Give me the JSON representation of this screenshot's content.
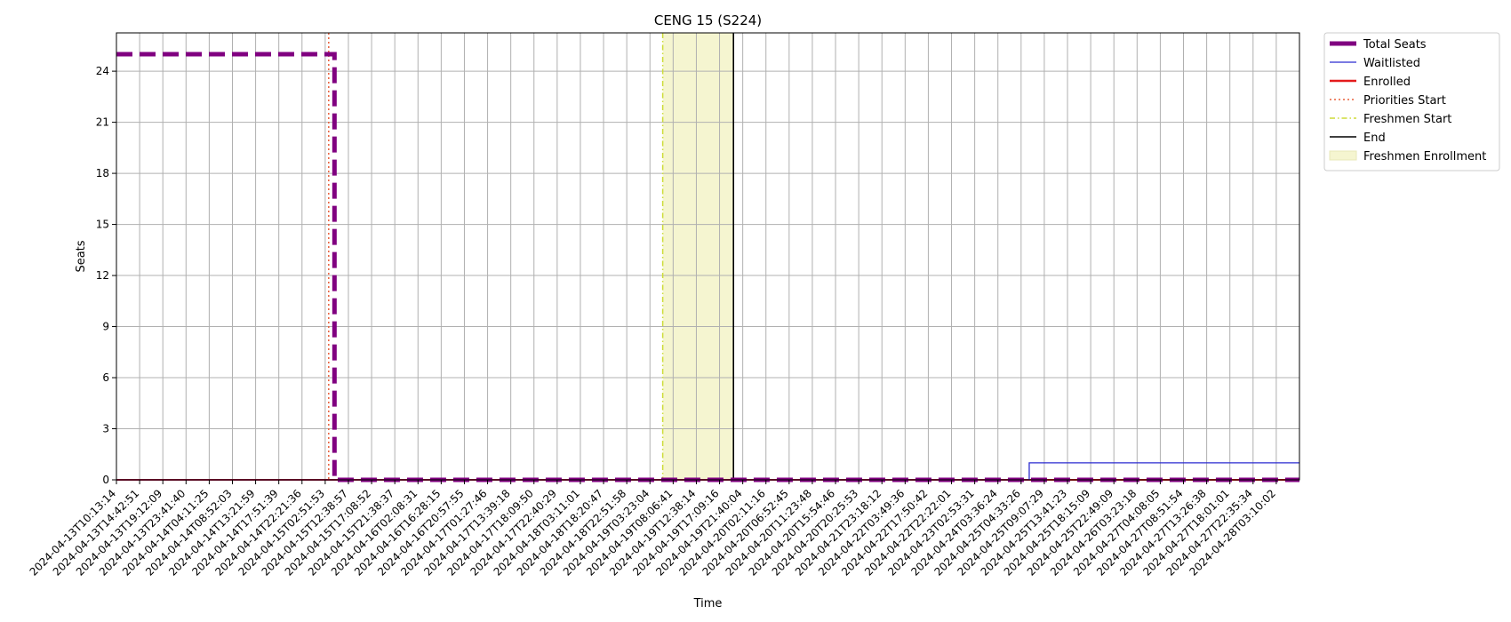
{
  "chart_data": {
    "type": "line",
    "title": "CENG 15 (S224)",
    "xlabel": "Time",
    "ylabel": "Seats",
    "ylim": [
      0,
      26.25
    ],
    "yticks": [
      0,
      3,
      6,
      9,
      12,
      15,
      18,
      21,
      24
    ],
    "grid": true,
    "legend_position": "outside-top-right",
    "x_ticks": [
      "2024-04-13T10:13:14",
      "2024-04-13T14:42:51",
      "2024-04-13T19:12:09",
      "2024-04-13T23:41:40",
      "2024-04-14T04:11:25",
      "2024-04-14T08:52:03",
      "2024-04-14T13:21:59",
      "2024-04-14T17:51:39",
      "2024-04-14T22:21:36",
      "2024-04-15T02:51:53",
      "2024-04-15T12:38:57",
      "2024-04-15T17:08:52",
      "2024-04-15T21:38:37",
      "2024-04-16T02:08:31",
      "2024-04-16T16:28:15",
      "2024-04-16T20:57:55",
      "2024-04-17T01:27:46",
      "2024-04-17T13:39:18",
      "2024-04-17T18:09:50",
      "2024-04-17T22:40:29",
      "2024-04-18T03:11:01",
      "2024-04-18T18:20:47",
      "2024-04-18T22:51:58",
      "2024-04-19T03:23:04",
      "2024-04-19T08:06:41",
      "2024-04-19T12:38:14",
      "2024-04-19T17:09:16",
      "2024-04-19T21:40:04",
      "2024-04-20T02:11:16",
      "2024-04-20T06:52:45",
      "2024-04-20T11:23:48",
      "2024-04-20T15:54:46",
      "2024-04-20T20:25:53",
      "2024-04-21T23:18:12",
      "2024-04-22T03:49:36",
      "2024-04-22T17:50:42",
      "2024-04-22T22:22:01",
      "2024-04-23T02:53:31",
      "2024-04-24T03:36:24",
      "2024-04-25T04:33:26",
      "2024-04-25T09:07:29",
      "2024-04-25T13:41:23",
      "2024-04-25T18:15:09",
      "2024-04-25T22:49:09",
      "2024-04-26T03:23:18",
      "2024-04-27T04:08:05",
      "2024-04-27T08:51:54",
      "2024-04-27T13:26:38",
      "2024-04-27T18:01:01",
      "2024-04-27T22:35:34",
      "2024-04-28T03:10:02"
    ],
    "series": [
      {
        "name": "Total Seats",
        "color": "#800080",
        "style": "dashed-thick",
        "points": [
          [
            0,
            25
          ],
          [
            9.4,
            25
          ],
          [
            9.4,
            0
          ],
          [
            51,
            0
          ]
        ]
      },
      {
        "name": "Waitlisted",
        "color": "#2b2bd0",
        "style": "solid-thin",
        "points": [
          [
            0,
            0
          ],
          [
            39.35,
            0
          ],
          [
            39.35,
            1
          ],
          [
            51,
            1
          ]
        ]
      },
      {
        "name": "Enrolled",
        "color": "#e41a1c",
        "style": "solid",
        "points": [
          [
            0,
            0
          ],
          [
            51,
            0
          ]
        ]
      }
    ],
    "vlines": [
      {
        "name": "Priorities Start",
        "x": 9.15,
        "color": "#e8603c",
        "style": "dotted"
      },
      {
        "name": "Freshmen Start",
        "x": 23.55,
        "color": "#cddc39",
        "style": "dashdot"
      },
      {
        "name": "End",
        "x": 26.6,
        "color": "#000000",
        "style": "solid"
      }
    ],
    "spans": [
      {
        "name": "Freshmen Enrollment",
        "x0": 23.55,
        "x1": 26.6,
        "color": "#f5f5d0"
      }
    ]
  }
}
